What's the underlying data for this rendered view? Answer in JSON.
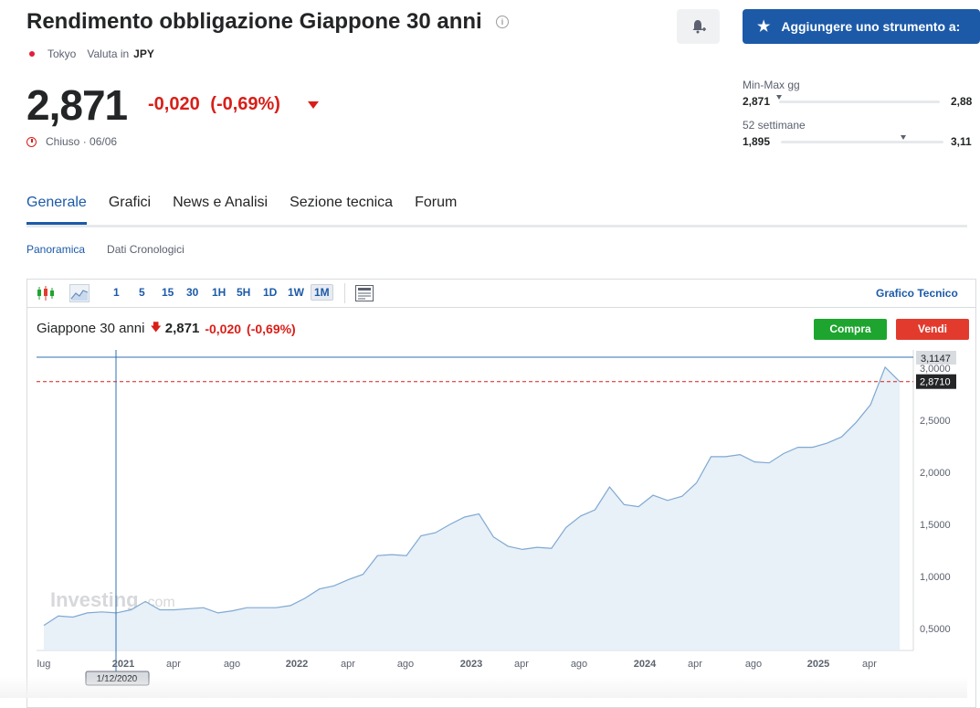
{
  "header": {
    "title": "Rendimento obbligazione Giappone 30 anni",
    "info_icon": "info-icon",
    "alert_icon": "bell-plus-icon",
    "add_button": "Aggiungere uno strumento a:"
  },
  "meta": {
    "exchange": "Tokyo",
    "currency_label": "Valuta in",
    "currency": "JPY"
  },
  "quote": {
    "price": "2,871",
    "change": "-0,020",
    "change_pct": "(-0,69%)",
    "status": "Chiuso · 06/06"
  },
  "ranges": {
    "day_label": "Min-Max gg",
    "day_low": "2,871",
    "day_high": "2,88",
    "week52_label": "52 settimane",
    "week52_low": "1,895",
    "week52_high": "3,11"
  },
  "nav": {
    "tabs": [
      "Generale",
      "Grafici",
      "News e Analisi",
      "Sezione tecnica",
      "Forum"
    ],
    "active": 0
  },
  "subnav": {
    "items": [
      "Panoramica",
      "Dati Cronologici"
    ],
    "active": 0
  },
  "toolbar": {
    "timeframes": [
      "1",
      "5",
      "15",
      "30",
      "1H",
      "5H",
      "1D",
      "1W",
      "1M"
    ],
    "selected": "1M",
    "tech_link": "Grafico Tecnico"
  },
  "legend": {
    "name": "Giappone 30 anni",
    "price": "2,871",
    "change": "-0,020",
    "change_pct": "(-0,69%)"
  },
  "trade": {
    "buy": "Compra",
    "sell": "Vendi"
  },
  "chart_data": {
    "type": "area",
    "x": [
      "2020-07",
      "2020-08",
      "2020-09",
      "2020-10",
      "2020-11",
      "2020-12",
      "2021-01",
      "2021-02",
      "2021-03",
      "2021-04",
      "2021-05",
      "2021-06",
      "2021-07",
      "2021-08",
      "2021-09",
      "2021-10",
      "2021-11",
      "2021-12",
      "2022-01",
      "2022-02",
      "2022-03",
      "2022-04",
      "2022-05",
      "2022-06",
      "2022-07",
      "2022-08",
      "2022-09",
      "2022-10",
      "2022-11",
      "2022-12",
      "2023-01",
      "2023-02",
      "2023-03",
      "2023-04",
      "2023-05",
      "2023-06",
      "2023-07",
      "2023-08",
      "2023-09",
      "2023-10",
      "2023-11",
      "2023-12",
      "2024-01",
      "2024-02",
      "2024-03",
      "2024-04",
      "2024-05",
      "2024-06",
      "2024-07",
      "2024-08",
      "2024-09",
      "2024-10",
      "2024-11",
      "2024-12",
      "2025-01",
      "2025-02",
      "2025-03",
      "2025-04",
      "2025-05",
      "2025-06"
    ],
    "values": [
      0.53,
      0.62,
      0.61,
      0.65,
      0.66,
      0.65,
      0.68,
      0.76,
      0.68,
      0.68,
      0.69,
      0.7,
      0.65,
      0.67,
      0.7,
      0.7,
      0.7,
      0.72,
      0.79,
      0.88,
      0.91,
      0.97,
      1.02,
      1.2,
      1.21,
      1.2,
      1.39,
      1.42,
      1.5,
      1.57,
      1.6,
      1.38,
      1.29,
      1.26,
      1.28,
      1.27,
      1.47,
      1.58,
      1.64,
      1.86,
      1.69,
      1.67,
      1.78,
      1.73,
      1.77,
      1.9,
      2.15,
      2.15,
      2.17,
      2.1,
      2.09,
      2.18,
      2.24,
      2.24,
      2.28,
      2.34,
      2.48,
      2.65,
      3.01,
      2.871
    ],
    "x_ticks": [
      "lug",
      "2021",
      "apr",
      "ago",
      "2022",
      "apr",
      "ago",
      "2023",
      "apr",
      "ago",
      "2024",
      "apr",
      "ago",
      "2025",
      "apr"
    ],
    "y_ticks": [
      "0,5000",
      "1,0000",
      "1,5000",
      "2,0000",
      "2,5000",
      "3,0000"
    ],
    "ylim": [
      0.3,
      3.2
    ],
    "last_label": "2,8710",
    "high_label": "3,1147",
    "crosshair_label": "1/12/2020",
    "watermark": "Investing",
    "watermark_suffix": ".com",
    "colors": {
      "line": "#7fa9d1",
      "fill": "#e5eef7",
      "last": "#d91e18"
    }
  }
}
